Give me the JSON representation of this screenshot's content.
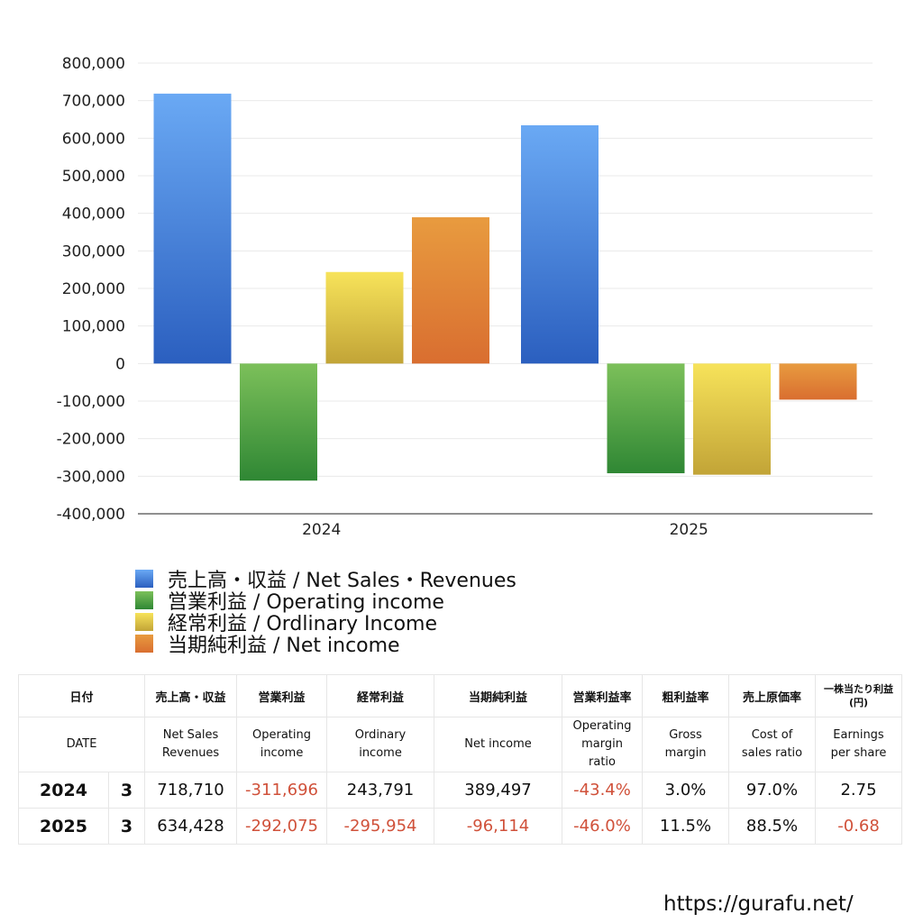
{
  "chart_data": {
    "type": "bar",
    "categories": [
      "2024",
      "2025"
    ],
    "series": [
      {
        "name": "売上高・収益 / Net Sales・Revenues",
        "values": [
          718710,
          634428
        ],
        "color_top": "#6aa9f4",
        "color_bottom": "#2b5fbf"
      },
      {
        "name": "営業利益 / Operating income",
        "values": [
          -311696,
          -292075
        ],
        "color_top": "#7cc05a",
        "color_bottom": "#2f8734"
      },
      {
        "name": "経常利益 / Ordlinary Income",
        "values": [
          243791,
          -295954
        ],
        "color_top": "#f7e35a",
        "color_bottom": "#c2a437"
      },
      {
        "name": "当期純利益 / Net income",
        "values": [
          389497,
          -96114
        ],
        "color_top": "#e89b3f",
        "color_bottom": "#d96e30"
      }
    ],
    "ylim": [
      -400000,
      800000
    ],
    "yticks": [
      800000,
      700000,
      600000,
      500000,
      400000,
      300000,
      200000,
      100000,
      0,
      -100000,
      -200000,
      -300000,
      -400000
    ],
    "ytick_labels": [
      "800,000",
      "700,000",
      "600,000",
      "500,000",
      "400,000",
      "300,000",
      "200,000",
      "100,000",
      "0",
      "-100,000",
      "-200,000",
      "-300,000",
      "-400,000"
    ],
    "grid": true,
    "legend_placement": "bottom-left"
  },
  "table": {
    "header_jp": [
      "日付",
      "売上高・収益",
      "営業利益",
      "経常利益",
      "当期純利益",
      "営業利益率",
      "粗利益率",
      "売上原価率",
      "一株当たり利益\n(円)"
    ],
    "header_en": [
      "DATE",
      "Net Sales\nRevenues",
      "Operating\nincome",
      "Ordinary\nincome",
      "Net income",
      "Operating\nmargin\nratio",
      "Gross\nmargin",
      "Cost of\nsales ratio",
      "Earnings\nper share"
    ],
    "rows": [
      {
        "year": "2024",
        "month": "3",
        "net_sales": "718,710",
        "operating_income": "-311,696",
        "ordinary_income": "243,791",
        "net_income": "389,497",
        "operating_margin": "-43.4%",
        "gross_margin": "3.0%",
        "cost_ratio": "97.0%",
        "eps": "2.75"
      },
      {
        "year": "2025",
        "month": "3",
        "net_sales": "634,428",
        "operating_income": "-292,075",
        "ordinary_income": "-295,954",
        "net_income": "-96,114",
        "operating_margin": "-46.0%",
        "gross_margin": "11.5%",
        "cost_ratio": "88.5%",
        "eps": "-0.68"
      }
    ]
  },
  "footer": {
    "url": "https://gurafu.net/"
  }
}
